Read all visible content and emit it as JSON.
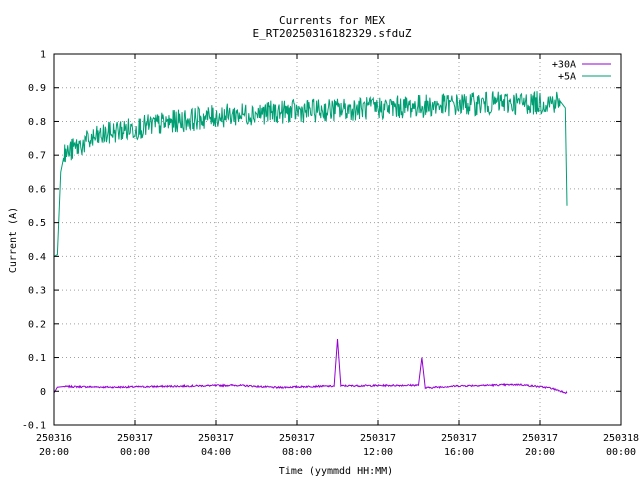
{
  "chart_data": {
    "type": "line",
    "title": "Currents for MEX",
    "subtitle": "E_RT20250316182329.sfduZ",
    "xlabel": "Time (yymmdd HH:MM)",
    "ylabel": "Current (A)",
    "xlim": [
      "2025-03-16T20:00",
      "2025-03-18T00:00"
    ],
    "ylim": [
      -0.1,
      1.0
    ],
    "grid": true,
    "legend_position": "top-right",
    "x_ticks": [
      {
        "date": "250316",
        "time": "20:00"
      },
      {
        "date": "250317",
        "time": "00:00"
      },
      {
        "date": "250317",
        "time": "04:00"
      },
      {
        "date": "250317",
        "time": "08:00"
      },
      {
        "date": "250317",
        "time": "12:00"
      },
      {
        "date": "250317",
        "time": "16:00"
      },
      {
        "date": "250317",
        "time": "20:00"
      },
      {
        "date": "250318",
        "time": "00:00"
      }
    ],
    "y_ticks": [
      "-0.1",
      "0",
      "0.1",
      "0.2",
      "0.3",
      "0.4",
      "0.5",
      "0.6",
      "0.7",
      "0.8",
      "0.9",
      "1"
    ],
    "series": [
      {
        "name": "+30A",
        "color": "#9400d3",
        "x": [
          "2025-03-16T20:00",
          "2025-03-16T20:10",
          "2025-03-16T20:30",
          "2025-03-16T23:00",
          "2025-03-17T02:00",
          "2025-03-17T05:00",
          "2025-03-17T07:00",
          "2025-03-17T09:00",
          "2025-03-17T09:50",
          "2025-03-17T10:00",
          "2025-03-17T10:10",
          "2025-03-17T12:00",
          "2025-03-17T14:00",
          "2025-03-17T14:10",
          "2025-03-17T14:20",
          "2025-03-17T16:00",
          "2025-03-17T19:00",
          "2025-03-17T20:30",
          "2025-03-17T21:20"
        ],
        "y": [
          -0.005,
          0.012,
          0.014,
          0.012,
          0.015,
          0.018,
          0.011,
          0.015,
          0.015,
          0.155,
          0.016,
          0.017,
          0.018,
          0.1,
          0.01,
          0.016,
          0.02,
          0.01,
          -0.005
        ]
      },
      {
        "name": "+5A",
        "color": "#009e73",
        "x": [
          "2025-03-16T20:00",
          "2025-03-16T20:10",
          "2025-03-16T20:20",
          "2025-03-16T20:30",
          "2025-03-16T21:00",
          "2025-03-16T22:00",
          "2025-03-16T23:00",
          "2025-03-17T00:00",
          "2025-03-17T02:00",
          "2025-03-17T04:00",
          "2025-03-17T06:00",
          "2025-03-17T08:00",
          "2025-03-17T10:00",
          "2025-03-17T12:00",
          "2025-03-17T14:00",
          "2025-03-17T16:00",
          "2025-03-17T18:00",
          "2025-03-17T20:00",
          "2025-03-17T21:00",
          "2025-03-17T21:15",
          "2025-03-17T21:20"
        ],
        "y": [
          0.4,
          0.405,
          0.65,
          0.7,
          0.72,
          0.75,
          0.77,
          0.78,
          0.8,
          0.815,
          0.825,
          0.83,
          0.835,
          0.84,
          0.845,
          0.85,
          0.855,
          0.855,
          0.86,
          0.84,
          0.55
        ]
      }
    ]
  }
}
